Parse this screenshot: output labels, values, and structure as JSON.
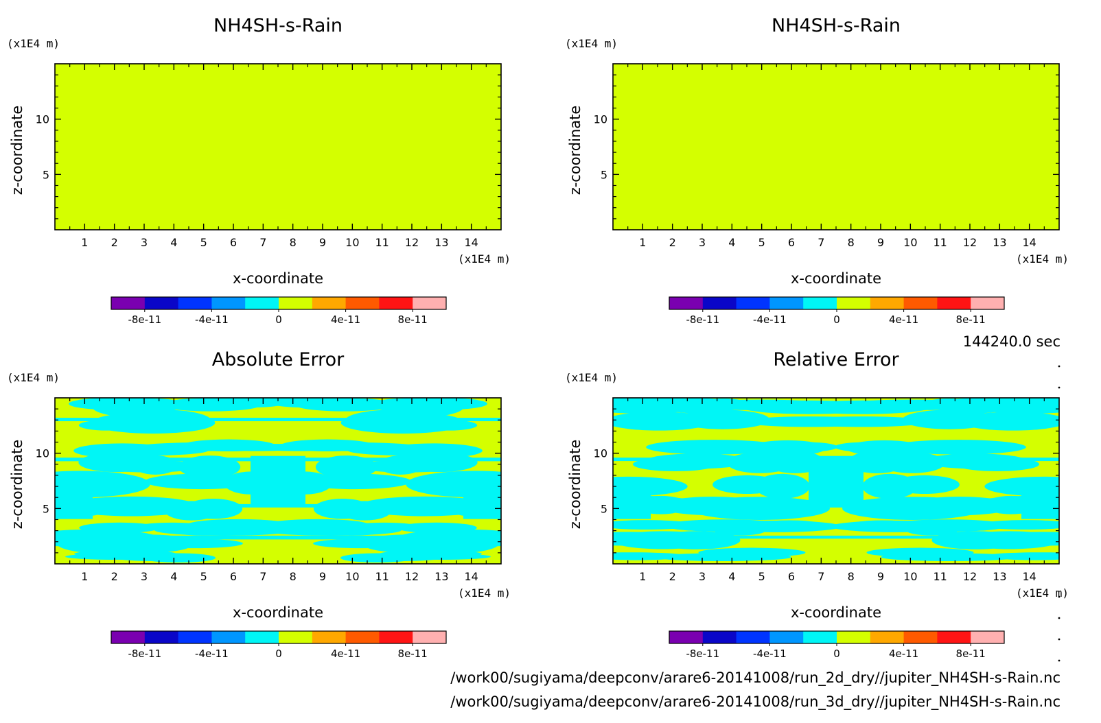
{
  "figure": {
    "time_label": "144240.0 sec",
    "file_paths": [
      "/work00/sugiyama/deepconv/arare6-20141008/run_2d_dry//jupiter_NH4SH-s-Rain.nc",
      "/work00/sugiyama/deepconv/arare6-20141008/run_3d_dry//jupiter_NH4SH-s-Rain.nc"
    ]
  },
  "colorbar": {
    "colors": [
      "#7a00b0",
      "#0a06c8",
      "#0034ff",
      "#0096ff",
      "#00f6f6",
      "#d4ff00",
      "#ffa800",
      "#ff5a00",
      "#ff1414",
      "#ffb0b0"
    ],
    "tick_labels": [
      "-8e-11",
      "-4e-11",
      "0",
      "4e-11",
      "8e-11"
    ]
  },
  "chart_data": [
    {
      "type": "heatmap",
      "title": "NH4SH-s-Rain",
      "xlabel": "x-coordinate",
      "ylabel": "z-coordinate",
      "x_unit": "(x1E4 m)",
      "y_unit": "(x1E4 m)",
      "xlim": [
        0,
        15
      ],
      "ylim": [
        0,
        15
      ],
      "xticks": [
        "1",
        "2",
        "3",
        "4",
        "5",
        "6",
        "7",
        "8",
        "9",
        "10",
        "11",
        "12",
        "13",
        "14"
      ],
      "yticks": [
        "5",
        "10"
      ],
      "field": "uniform",
      "field_color": "#d4ff00"
    },
    {
      "type": "heatmap",
      "title": "NH4SH-s-Rain",
      "xlabel": "x-coordinate",
      "ylabel": "z-coordinate",
      "x_unit": "(x1E4 m)",
      "y_unit": "(x1E4 m)",
      "xlim": [
        0,
        15
      ],
      "ylim": [
        0,
        15
      ],
      "xticks": [
        "1",
        "2",
        "3",
        "4",
        "5",
        "6",
        "7",
        "8",
        "9",
        "10",
        "11",
        "12",
        "13",
        "14"
      ],
      "yticks": [
        "5",
        "10"
      ],
      "field": "uniform",
      "field_color": "#d4ff00"
    },
    {
      "type": "heatmap",
      "title": "Absolute Error",
      "xlabel": "x-coordinate",
      "ylabel": "z-coordinate",
      "x_unit": "(x1E4 m)",
      "y_unit": "(x1E4 m)",
      "xlim": [
        0,
        15
      ],
      "ylim": [
        0,
        15
      ],
      "xticks": [
        "1",
        "2",
        "3",
        "4",
        "5",
        "6",
        "7",
        "8",
        "9",
        "10",
        "11",
        "12",
        "13",
        "14"
      ],
      "yticks": [
        "5",
        "10"
      ],
      "field": "mixed",
      "field_colors": [
        "#d4ff00",
        "#00f6f6"
      ]
    },
    {
      "type": "heatmap",
      "title": "Relative Error",
      "xlabel": "x-coordinate",
      "ylabel": "z-coordinate",
      "x_unit": "(x1E4 m)",
      "y_unit": "(x1E4 m)",
      "xlim": [
        0,
        15
      ],
      "ylim": [
        0,
        15
      ],
      "xticks": [
        "1",
        "2",
        "3",
        "4",
        "5",
        "6",
        "7",
        "8",
        "9",
        "10",
        "11",
        "12",
        "13",
        "14"
      ],
      "yticks": [
        "5",
        "10"
      ],
      "field": "mixed",
      "field_colors": [
        "#d4ff00",
        "#00f6f6"
      ]
    }
  ]
}
